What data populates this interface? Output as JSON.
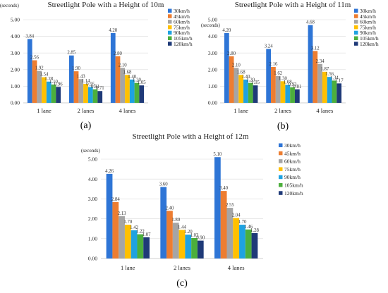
{
  "chart_data": [
    {
      "type": "bar",
      "title": "Streetlight Pole with a Height of 10m",
      "ylabel": "(seconds)",
      "xlabel": "",
      "categories": [
        "1 lane",
        "2 lanes",
        "4 lanes"
      ],
      "ylim": [
        0,
        5
      ],
      "yticks": [
        "0.00",
        "1.00",
        "2.00",
        "3.00",
        "4.00",
        "5.00"
      ],
      "legend": "right",
      "grid": true,
      "sublabel": "(a)",
      "series": [
        {
          "name": "30km/h",
          "color": "#2e75d6",
          "values": [
            3.84,
            2.85,
            4.2
          ],
          "labels": [
            "3.84",
            "2.85",
            "4.20"
          ]
        },
        {
          "name": "45km/h",
          "color": "#ed7d31",
          "values": [
            2.56,
            1.9,
            2.8
          ],
          "labels": [
            "2.56",
            "1.90",
            "2.80"
          ]
        },
        {
          "name": "60km/h",
          "color": "#a5a5a5",
          "values": [
            1.92,
            1.43,
            2.1
          ],
          "labels": [
            "1.92",
            "1.43",
            "2.10"
          ]
        },
        {
          "name": "75km/h",
          "color": "#ffc000",
          "values": [
            1.54,
            1.14,
            1.68
          ],
          "labels": [
            "1.54",
            "1.14",
            "1.68"
          ]
        },
        {
          "name": "90km/h",
          "color": "#1fa2e0",
          "values": [
            1.28,
            0.95,
            1.4
          ],
          "labels": [
            "1.28",
            "0.95",
            "1.40"
          ]
        },
        {
          "name": "105km/h",
          "color": "#4caf3c",
          "values": [
            1.1,
            0.81,
            1.2
          ],
          "labels": [
            "1.10",
            "0.81",
            "1.20"
          ]
        },
        {
          "name": "120km/h",
          "color": "#1f3a78",
          "values": [
            0.96,
            0.71,
            1.05
          ],
          "labels": [
            "0.96",
            "0.71",
            "1.05"
          ]
        }
      ]
    },
    {
      "type": "bar",
      "title": "Streetlight Pole with a Height of 11m",
      "ylabel": "(seconds)",
      "xlabel": "",
      "categories": [
        "1 lane",
        "2 lanes",
        "4 lanes"
      ],
      "ylim": [
        0,
        5
      ],
      "yticks": [
        "0.00",
        "1.00",
        "2.00",
        "3.00",
        "4.00",
        "5.00"
      ],
      "legend": "right",
      "grid": true,
      "sublabel": "(b)",
      "series": [
        {
          "name": "30km/h",
          "color": "#2e75d6",
          "values": [
            4.2,
            3.24,
            4.68
          ],
          "labels": [
            "4.20",
            "3.24",
            "4.68"
          ]
        },
        {
          "name": "45km/h",
          "color": "#ed7d31",
          "values": [
            2.8,
            2.16,
            3.12
          ],
          "labels": [
            "2.80",
            "2.16",
            "3.12"
          ]
        },
        {
          "name": "60km/h",
          "color": "#a5a5a5",
          "values": [
            2.1,
            1.62,
            2.34
          ],
          "labels": [
            "2.10",
            "1.62",
            "2.34"
          ]
        },
        {
          "name": "75km/h",
          "color": "#ffc000",
          "values": [
            1.68,
            1.3,
            1.87
          ],
          "labels": [
            "1.68",
            "1.30",
            "1.87"
          ]
        },
        {
          "name": "90km/h",
          "color": "#1fa2e0",
          "values": [
            1.4,
            1.08,
            1.56
          ],
          "labels": [
            "1.40",
            "1.08",
            "1.56"
          ]
        },
        {
          "name": "105km/h",
          "color": "#4caf3c",
          "values": [
            1.2,
            0.93,
            1.34
          ],
          "labels": [
            "1.20",
            "0.93",
            "1.34"
          ]
        },
        {
          "name": "120km/h",
          "color": "#1f3a78",
          "values": [
            1.05,
            0.81,
            1.17
          ],
          "labels": [
            "1.05",
            "0.81",
            "1.17"
          ]
        }
      ]
    },
    {
      "type": "bar",
      "title": "Streetlight Pole with a Height of 12m",
      "ylabel": "(seconds)",
      "xlabel": "",
      "categories": [
        "1 lane",
        "2 lanes",
        "4 lanes"
      ],
      "ylim": [
        0,
        5
      ],
      "yticks": [
        "0.00",
        "1.00",
        "2.00",
        "3.00",
        "4.00",
        "5.00"
      ],
      "legend": "right",
      "grid": true,
      "sublabel": "(c)",
      "series": [
        {
          "name": "30km/h",
          "color": "#2e75d6",
          "values": [
            4.26,
            3.6,
            5.1
          ],
          "labels": [
            "4.26",
            "3.60",
            "5.10"
          ]
        },
        {
          "name": "45km/h",
          "color": "#ed7d31",
          "values": [
            2.84,
            2.4,
            3.4
          ],
          "labels": [
            "2.84",
            "2.40",
            "3.40"
          ]
        },
        {
          "name": "60km/h",
          "color": "#a5a5a5",
          "values": [
            2.13,
            1.8,
            2.55
          ],
          "labels": [
            "2.13",
            "1.80",
            "2.55"
          ]
        },
        {
          "name": "75km/h",
          "color": "#ffc000",
          "values": [
            1.7,
            1.44,
            2.04
          ],
          "labels": [
            "1.70",
            "1.44",
            "2.04"
          ]
        },
        {
          "name": "90km/h",
          "color": "#1fa2e0",
          "values": [
            1.42,
            1.2,
            1.7
          ],
          "labels": [
            "1.42",
            "1.20",
            "1.70"
          ]
        },
        {
          "name": "105km/h",
          "color": "#4caf3c",
          "values": [
            1.22,
            1.03,
            1.46
          ],
          "labels": [
            "1.22",
            "1.03",
            "1.46"
          ]
        },
        {
          "name": "120km/h",
          "color": "#1f3a78",
          "values": [
            1.07,
            0.9,
            1.28
          ],
          "labels": [
            "1.07",
            "0.90",
            "1.28"
          ]
        }
      ]
    }
  ]
}
